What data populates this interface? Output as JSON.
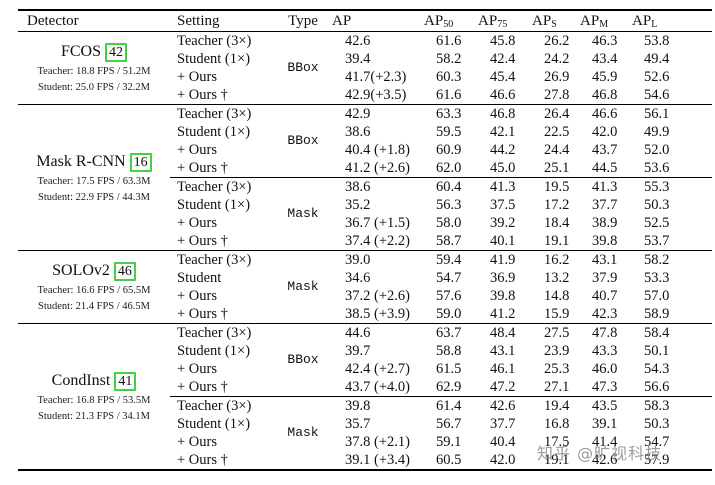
{
  "header": {
    "columns": [
      {
        "label": "Detector",
        "sub": ""
      },
      {
        "label": "Setting",
        "sub": ""
      },
      {
        "label": "Type",
        "sub": ""
      },
      {
        "label": "AP",
        "sub": ""
      },
      {
        "label": "AP",
        "sub": "50"
      },
      {
        "label": "AP",
        "sub": "75"
      },
      {
        "label": "AP",
        "sub": "S"
      },
      {
        "label": "AP",
        "sub": "M"
      },
      {
        "label": "AP",
        "sub": "L"
      }
    ]
  },
  "groups": [
    {
      "detector": {
        "name": "FCOS",
        "cite": "42",
        "teacher_info": "Teacher: 18.8 FPS / 51.2M",
        "student_info": "Student: 25.0 FPS / 32.2M"
      },
      "blocks": [
        {
          "type": "BBox",
          "rows": [
            {
              "setting": "Teacher (3×)",
              "values": [
                "42.6",
                "61.6",
                "45.8",
                "26.2",
                "46.3",
                "53.8"
              ]
            },
            {
              "setting": "Student (1×)",
              "values": [
                "39.4",
                "58.2",
                "42.4",
                "24.2",
                "43.4",
                "49.4"
              ]
            },
            {
              "setting": "+ Ours",
              "values": [
                "41.7(+2.3)",
                "60.3",
                "45.4",
                "26.9",
                "45.9",
                "52.6"
              ]
            },
            {
              "setting": "+ Ours †",
              "values": [
                "42.9(+3.5)",
                "61.6",
                "46.6",
                "27.8",
                "46.8",
                "54.6"
              ]
            }
          ]
        }
      ]
    },
    {
      "detector": {
        "name": "Mask R-CNN",
        "cite": "16",
        "teacher_info": "Teacher: 17.5 FPS / 63.3M",
        "student_info": "Student: 22.9 FPS / 44.3M"
      },
      "blocks": [
        {
          "type": "BBox",
          "rows": [
            {
              "setting": "Teacher (3×)",
              "values": [
                "42.9",
                "63.3",
                "46.8",
                "26.4",
                "46.6",
                "56.1"
              ]
            },
            {
              "setting": "Student (1×)",
              "values": [
                "38.6",
                "59.5",
                "42.1",
                "22.5",
                "42.0",
                "49.9"
              ]
            },
            {
              "setting": "+ Ours",
              "values": [
                "40.4 (+1.8)",
                "60.9",
                "44.2",
                "24.4",
                "43.7",
                "52.0"
              ]
            },
            {
              "setting": "+ Ours †",
              "values": [
                "41.2 (+2.6)",
                "62.0",
                "45.0",
                "25.1",
                "44.5",
                "53.6"
              ]
            }
          ]
        },
        {
          "type": "Mask",
          "rows": [
            {
              "setting": "Teacher (3×)",
              "values": [
                "38.6",
                "60.4",
                "41.3",
                "19.5",
                "41.3",
                "55.3"
              ]
            },
            {
              "setting": "Student (1×)",
              "values": [
                "35.2",
                "56.3",
                "37.5",
                "17.2",
                "37.7",
                "50.3"
              ]
            },
            {
              "setting": "+ Ours",
              "values": [
                "36.7 (+1.5)",
                "58.0",
                "39.2",
                "18.4",
                "38.9",
                "52.5"
              ]
            },
            {
              "setting": "+ Ours †",
              "values": [
                "37.4 (+2.2)",
                "58.7",
                "40.1",
                "19.1",
                "39.8",
                "53.7"
              ]
            }
          ]
        }
      ]
    },
    {
      "detector": {
        "name": "SOLOv2",
        "cite": "46",
        "teacher_info": "Teacher: 16.6 FPS / 65.5M",
        "student_info": "Student: 21.4 FPS / 46.5M"
      },
      "blocks": [
        {
          "type": "Mask",
          "rows": [
            {
              "setting": "Teacher (3×)",
              "values": [
                "39.0",
                "59.4",
                "41.9",
                "16.2",
                "43.1",
                "58.2"
              ]
            },
            {
              "setting": "Student",
              "values": [
                "34.6",
                "54.7",
                "36.9",
                "13.2",
                "37.9",
                "53.3"
              ]
            },
            {
              "setting": "+ Ours",
              "values": [
                "37.2 (+2.6)",
                "57.6",
                "39.8",
                "14.8",
                "40.7",
                "57.0"
              ]
            },
            {
              "setting": "+ Ours †",
              "values": [
                "38.5 (+3.9)",
                "59.0",
                "41.2",
                "15.9",
                "42.3",
                "58.9"
              ]
            }
          ]
        }
      ]
    },
    {
      "detector": {
        "name": "CondInst",
        "cite": "41",
        "teacher_info": "Teacher: 16.8 FPS / 53.5M",
        "student_info": "Student: 21.3 FPS / 34.1M"
      },
      "blocks": [
        {
          "type": "BBox",
          "rows": [
            {
              "setting": "Teacher (3×)",
              "values": [
                "44.6",
                "63.7",
                "48.4",
                "27.5",
                "47.8",
                "58.4"
              ]
            },
            {
              "setting": "Student (1×)",
              "values": [
                "39.7",
                "58.8",
                "43.1",
                "23.9",
                "43.3",
                "50.1"
              ]
            },
            {
              "setting": "+ Ours",
              "values": [
                "42.4 (+2.7)",
                "61.5",
                "46.1",
                "25.3",
                "46.0",
                "54.3"
              ]
            },
            {
              "setting": "+ Ours †",
              "values": [
                "43.7 (+4.0)",
                "62.9",
                "47.2",
                "27.1",
                "47.3",
                "56.6"
              ]
            }
          ]
        },
        {
          "type": "Mask",
          "rows": [
            {
              "setting": "Teacher (3×)",
              "values": [
                "39.8",
                "61.4",
                "42.6",
                "19.4",
                "43.5",
                "58.3"
              ]
            },
            {
              "setting": "Student (1×)",
              "values": [
                "35.7",
                "56.7",
                "37.7",
                "16.8",
                "39.1",
                "50.3"
              ]
            },
            {
              "setting": "+ Ours",
              "values": [
                "37.8 (+2.1)",
                "59.1",
                "40.4",
                "17.5",
                "41.4",
                "54.7"
              ]
            },
            {
              "setting": "+ Ours †",
              "values": [
                "39.1 (+3.4)",
                "60.5",
                "42.0",
                "19.1",
                "42.6",
                "57.9"
              ]
            }
          ]
        }
      ]
    }
  ],
  "watermark": {
    "text": "知乎 @旷视科技"
  }
}
